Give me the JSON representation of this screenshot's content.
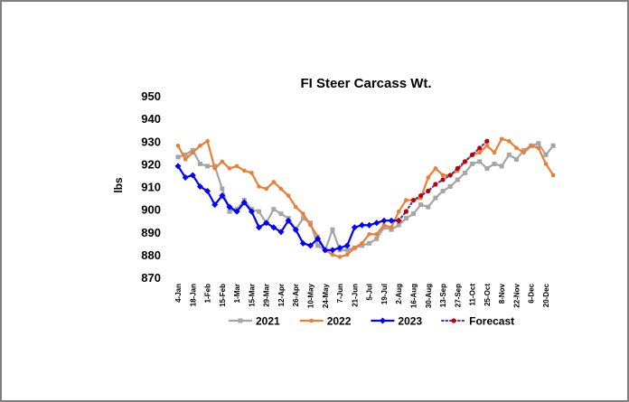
{
  "chart_data": {
    "type": "line",
    "title": "FI Steer Carcass Wt.",
    "y_label": "lbs",
    "categories": [
      "4-Jan",
      null,
      "18-Jan",
      null,
      "1-Feb",
      null,
      "15-Feb",
      null,
      "1-Mar",
      null,
      "15-Mar",
      null,
      "29-Mar",
      null,
      "12-Apr",
      null,
      "26-Apr",
      null,
      "10-May",
      null,
      "24-May",
      null,
      "7-Jun",
      null,
      "21-Jun",
      null,
      "5-Jul",
      null,
      "19-Jul",
      null,
      "2-Aug",
      null,
      "16-Aug",
      null,
      "30-Aug",
      null,
      "13-Sep",
      null,
      "27-Sep",
      null,
      "11-Oct",
      null,
      "25-Oct",
      null,
      "8-Nov",
      null,
      "22-Nov",
      null,
      "6-Dec",
      null,
      "20-Dec",
      null
    ],
    "ylim": [
      870,
      950
    ],
    "yticks": [
      870,
      880,
      890,
      900,
      910,
      920,
      930,
      940,
      950
    ],
    "grid": false,
    "legend": "bottom",
    "series": [
      {
        "name": "2021",
        "color": "#a5a5a5",
        "marker": "square",
        "values": [
          923,
          924,
          926,
          920,
          919,
          919,
          909,
          899,
          900,
          904,
          900,
          899,
          894,
          900,
          898,
          896,
          891,
          896,
          894,
          884,
          882,
          891,
          882,
          882,
          883,
          884,
          885,
          887,
          892,
          891,
          893,
          896,
          898,
          902,
          901,
          905,
          908,
          910,
          913,
          916,
          920,
          921,
          918,
          920,
          919,
          924,
          922,
          926,
          928,
          929,
          924,
          928
        ]
      },
      {
        "name": "2022",
        "color": "#ed7d31",
        "marker": "circle",
        "values": [
          928,
          922,
          925,
          928,
          930,
          918,
          921,
          918,
          919,
          917,
          916,
          910,
          909,
          912,
          909,
          906,
          901,
          898,
          893,
          888,
          882,
          880,
          879,
          880,
          883,
          885,
          889,
          889,
          893,
          892,
          899,
          904,
          904,
          905,
          914,
          918,
          915,
          915,
          917,
          921,
          924,
          925,
          928,
          925,
          931,
          930,
          927,
          925,
          928,
          927,
          920,
          915
        ]
      },
      {
        "name": "2023",
        "color": "#0000ff",
        "marker": "diamond",
        "values": [
          919,
          914,
          915,
          910,
          908,
          902,
          906,
          901,
          899,
          903,
          899,
          892,
          894,
          892,
          890,
          895,
          891,
          885,
          884,
          887,
          882,
          882,
          883,
          884,
          892,
          893,
          893,
          894,
          895,
          895,
          895,
          null,
          null,
          null,
          null,
          null,
          null,
          null,
          null,
          null,
          null,
          null,
          null,
          null,
          null,
          null,
          null,
          null,
          null,
          null,
          null,
          null
        ]
      },
      {
        "name": "Forecast",
        "color": "#7030a0",
        "marker_color": "#c00000",
        "marker": "dot",
        "dashed": true,
        "values": [
          null,
          null,
          null,
          null,
          null,
          null,
          null,
          null,
          null,
          null,
          null,
          null,
          null,
          null,
          null,
          null,
          null,
          null,
          null,
          null,
          null,
          null,
          null,
          null,
          null,
          null,
          null,
          null,
          null,
          null,
          895,
          899,
          904,
          906,
          908,
          911,
          913,
          915,
          918,
          921,
          924,
          927,
          930,
          null,
          null,
          null,
          null,
          null,
          null,
          null,
          null,
          null
        ]
      }
    ]
  }
}
